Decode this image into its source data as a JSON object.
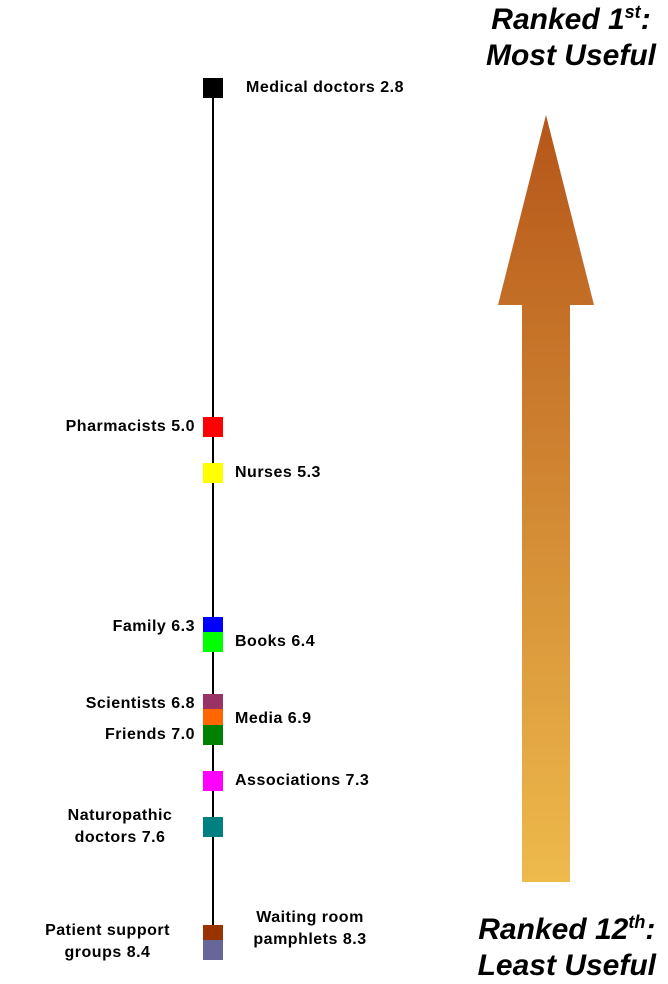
{
  "chart_data": {
    "type": "dot",
    "categories": [
      "Medical doctors",
      "Pharmacists",
      "Nurses",
      "Family",
      "Books",
      "Scientists",
      "Media",
      "Friends",
      "Associations",
      "Naturopathic doctors",
      "Waiting room pamphlets",
      "Patient support groups"
    ],
    "values": [
      2.8,
      5.0,
      5.3,
      6.3,
      6.4,
      6.8,
      6.9,
      7.0,
      7.3,
      7.6,
      8.3,
      8.4
    ],
    "value_labels": [
      "2.8",
      "5.0",
      "5.3",
      "6.3",
      "6.4",
      "6.8",
      "6.9",
      "7.0",
      "7.3",
      "7.6",
      "8.3",
      "8.4"
    ],
    "colors": [
      "#000000",
      "#ff0000",
      "#ffff00",
      "#0000ff",
      "#00ff00",
      "#993366",
      "#ff6600",
      "#008000",
      "#ff00ff",
      "#008080",
      "#993300",
      "#666699"
    ],
    "ylim": [
      2.8,
      8.4
    ],
    "inverted": true,
    "annotations": [
      {
        "prefix": "Ranked 1",
        "sup": "st",
        "suffix": ":",
        "line2": "Most Useful"
      },
      {
        "prefix": "Ranked 12",
        "sup": "th",
        "suffix": ":",
        "line2": "Least Useful"
      }
    ]
  }
}
